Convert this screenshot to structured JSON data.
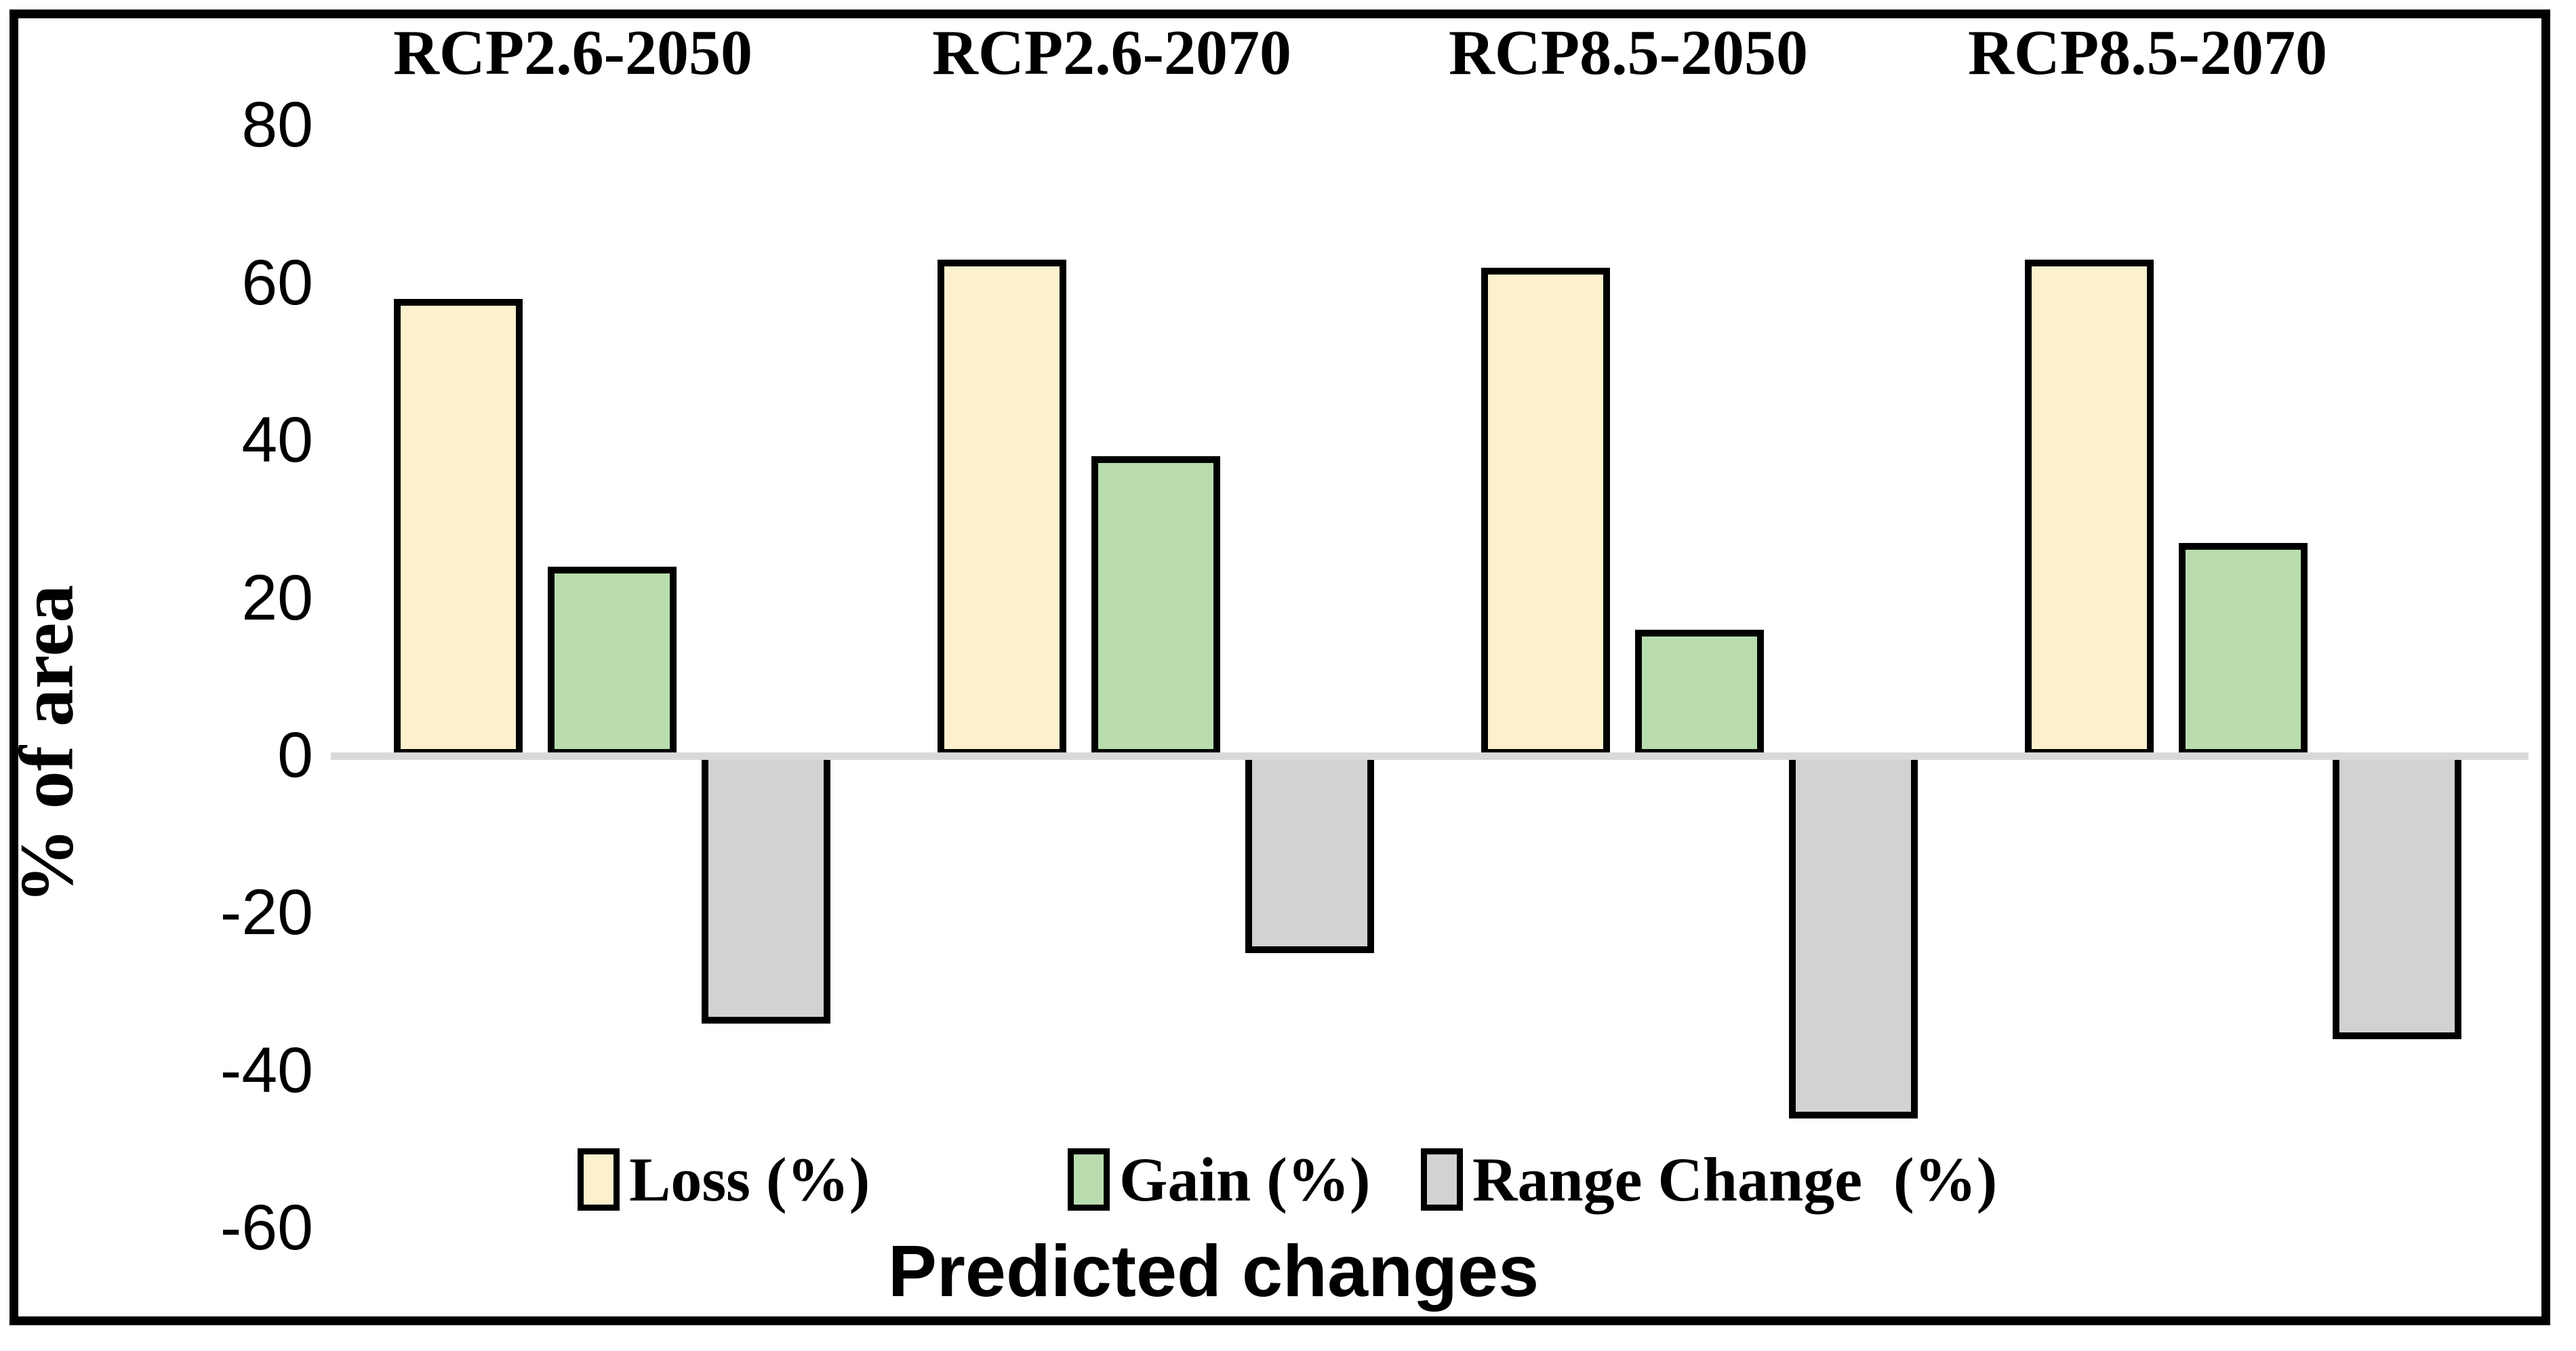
{
  "figure": {
    "background": "#FFFFFF",
    "border_color": "#000000"
  },
  "chart_data": {
    "type": "bar",
    "title": "",
    "categories": [
      "RCP2.6-2050",
      "RCP2.6-2070",
      "RCP8.5-2050",
      "RCP8.5-2070"
    ],
    "series": [
      {
        "name": "Loss (%)",
        "color": "#FDF1CD",
        "values": [
          58,
          63,
          62,
          63
        ]
      },
      {
        "name": "Gain (%)",
        "color": "#B9DCAE",
        "values": [
          24,
          38,
          16,
          27
        ]
      },
      {
        "name": "Range Change  (%)",
        "color": "#D2D2D2",
        "values": [
          -34,
          -25,
          -46,
          -36
        ]
      }
    ],
    "xlabel": "Predicted changes",
    "ylabel": "% of area",
    "ylim": [
      -60,
      80
    ],
    "yticks": [
      80,
      60,
      40,
      20,
      0,
      -20,
      -40,
      -60
    ],
    "ytick_labels": [
      "80",
      "60",
      "40",
      "20",
      "0",
      "-20",
      "-40",
      "-60"
    ],
    "grid": false,
    "zero_line_color": "#D9D9D9",
    "bar_border_color": "#000000",
    "legend_position": "bottom-inside"
  }
}
